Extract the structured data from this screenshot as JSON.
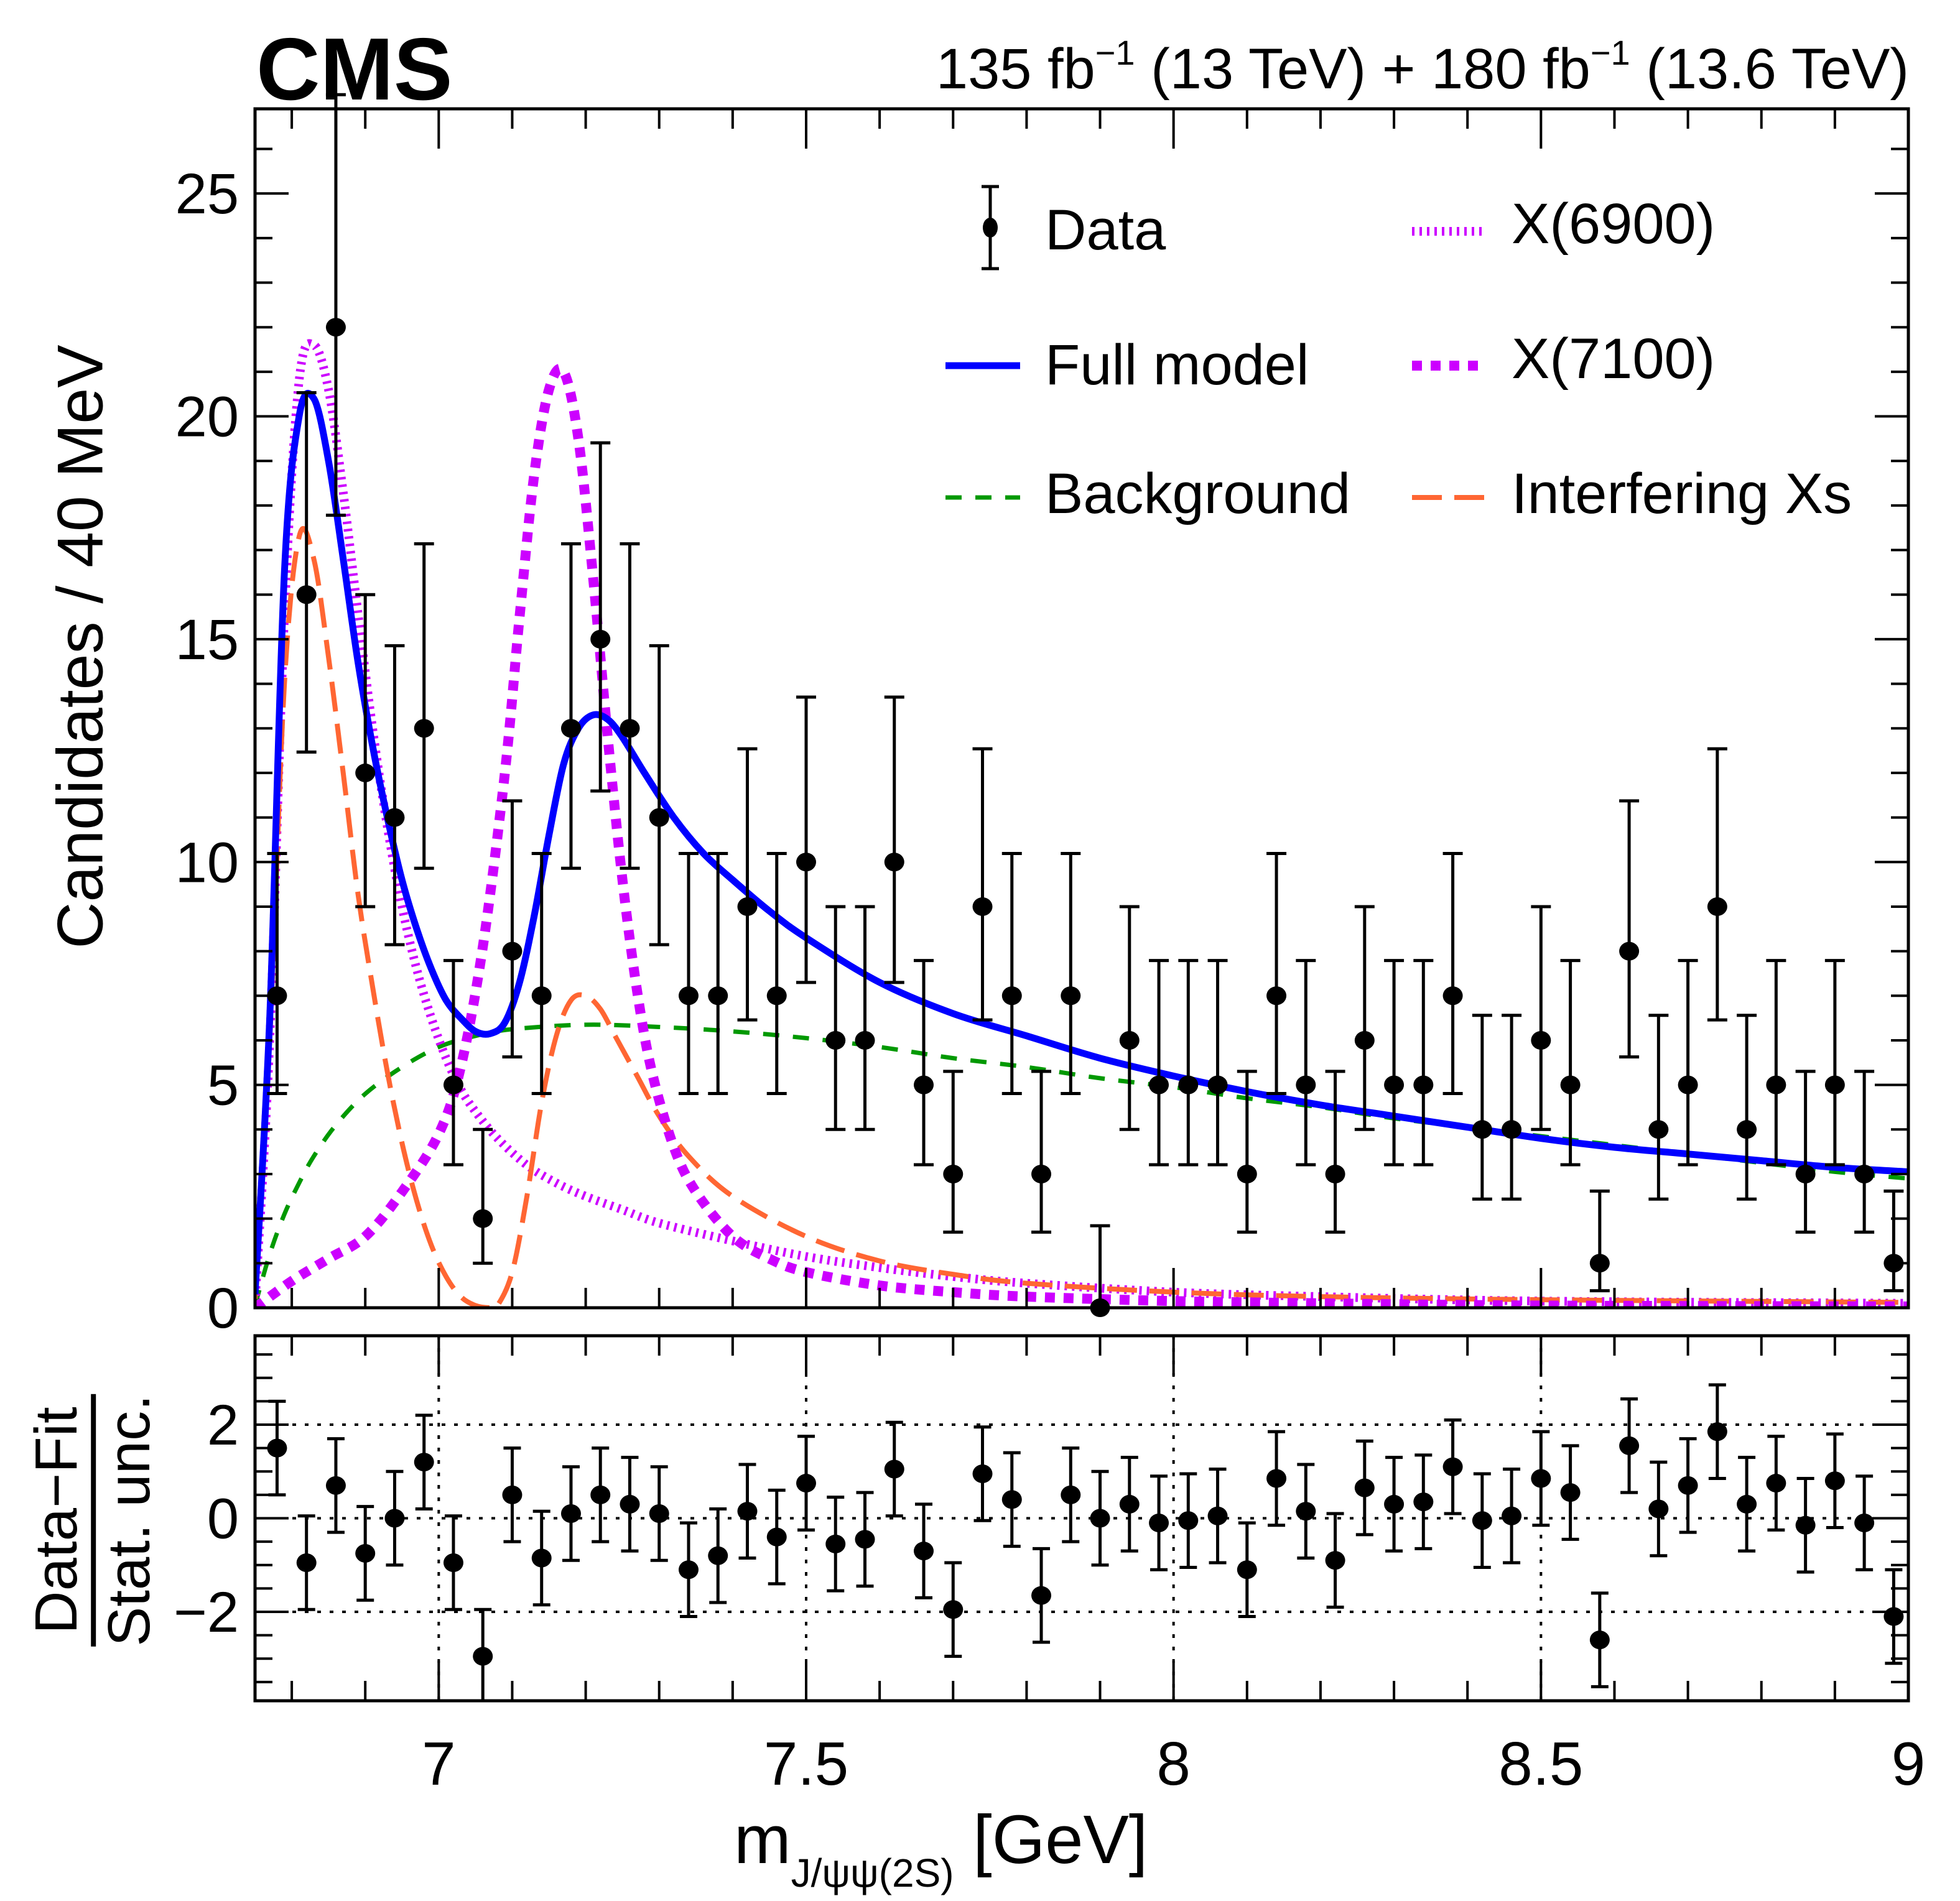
{
  "header": {
    "experiment": "CMS",
    "luminosity_label": {
      "part1": "135 fb",
      "sup1": "−1",
      "part2": " (13 TeV) + 180 fb",
      "sup2": "−1",
      "part3": " (13.6 TeV)"
    }
  },
  "legend": {
    "items": [
      {
        "key": "data",
        "label": "Data",
        "style": "marker-errorbar",
        "color": "#000000"
      },
      {
        "key": "x6900",
        "label": "X(6900)",
        "style": "fine-dotted",
        "color": "#cc00ff"
      },
      {
        "key": "full",
        "label": "Full model",
        "style": "solid",
        "color": "#0000ff"
      },
      {
        "key": "x7100",
        "label": "X(7100)",
        "style": "thick-dotted",
        "color": "#cc00ff"
      },
      {
        "key": "bkg",
        "label": "Background",
        "style": "dashed",
        "color": "#009900"
      },
      {
        "key": "interf",
        "label": "Interfering Xs",
        "style": "long-dashed",
        "color": "#ff6633"
      }
    ]
  },
  "axes": {
    "x_label_main": "m",
    "x_label_sub": "J/ψψ(2S)",
    "x_label_unit": " [GeV]",
    "y_label_main": "Candidates / 40 MeV",
    "y_label_ratio_num": "Data−Fit",
    "y_label_ratio_den": "Stat. unc."
  },
  "chart_data": [
    {
      "type": "scatter",
      "panel": "main",
      "title": "",
      "xlabel": "m_J/ψψ(2S) [GeV]",
      "ylabel": "Candidates / 40 MeV",
      "xlim": [
        6.75,
        9.0
      ],
      "ylim": [
        0,
        26.9
      ],
      "x_ticks": [
        7,
        7.5,
        8,
        8.5,
        9
      ],
      "x_tick_labels": [
        "7",
        "7.5",
        "8",
        "8.5",
        "9"
      ],
      "y_ticks": [
        0,
        5,
        10,
        15,
        20,
        25
      ],
      "y_tick_labels": [
        "0",
        "5",
        "10",
        "15",
        "20",
        "25"
      ],
      "grid": false,
      "legend_position": "top-right",
      "data": {
        "name": "Data",
        "x": [
          6.78,
          6.82,
          6.86,
          6.9,
          6.94,
          6.98,
          7.02,
          7.06,
          7.1,
          7.14,
          7.18,
          7.22,
          7.26,
          7.3,
          7.34,
          7.38,
          7.42,
          7.46,
          7.5,
          7.54,
          7.58,
          7.62,
          7.66,
          7.7,
          7.74,
          7.78,
          7.82,
          7.86,
          7.9,
          7.94,
          7.98,
          8.02,
          8.06,
          8.1,
          8.14,
          8.18,
          8.22,
          8.26,
          8.3,
          8.34,
          8.38,
          8.42,
          8.46,
          8.5,
          8.54,
          8.58,
          8.62,
          8.66,
          8.7,
          8.74,
          8.78,
          8.82,
          8.86,
          8.9,
          8.94,
          8.98
        ],
        "y": [
          7,
          16,
          22,
          12,
          11,
          13,
          5,
          2,
          8,
          7,
          13,
          15,
          13,
          11,
          7,
          7,
          9,
          7,
          10,
          6,
          6,
          10,
          5,
          3,
          9,
          7,
          3,
          7,
          0,
          6,
          5,
          5,
          5,
          3,
          7,
          5,
          3,
          6,
          5,
          5,
          7,
          4,
          4,
          6,
          5,
          1,
          8,
          4,
          5,
          9,
          4,
          5,
          3,
          5,
          3,
          1
        ],
        "errors": "Poisson (approx. ±√N, asymmetric)"
      },
      "series": [
        {
          "name": "Full model",
          "x": [
            6.75,
            6.77,
            6.79,
            6.81,
            6.83,
            6.85,
            6.87,
            6.89,
            6.91,
            6.93,
            6.95,
            6.97,
            6.99,
            7.01,
            7.03,
            7.05,
            7.07,
            7.09,
            7.11,
            7.13,
            7.15,
            7.17,
            7.19,
            7.21,
            7.23,
            7.25,
            7.28,
            7.32,
            7.36,
            7.4,
            7.45,
            7.5,
            7.6,
            7.7,
            7.8,
            7.9,
            8.0,
            8.1,
            8.2,
            8.3,
            8.4,
            8.5,
            8.6,
            8.7,
            8.8,
            8.9,
            9.0
          ],
          "y": [
            0.3,
            6.5,
            16.5,
            20.0,
            20.4,
            19.0,
            16.8,
            14.5,
            12.6,
            11.0,
            9.6,
            8.5,
            7.6,
            6.9,
            6.5,
            6.2,
            6.15,
            6.4,
            7.3,
            8.8,
            10.6,
            12.2,
            13.0,
            13.3,
            13.2,
            12.8,
            12.0,
            11.0,
            10.2,
            9.6,
            8.9,
            8.3,
            7.3,
            6.6,
            6.1,
            5.6,
            5.2,
            4.85,
            4.55,
            4.3,
            4.05,
            3.8,
            3.6,
            3.45,
            3.3,
            3.15,
            3.05
          ]
        },
        {
          "name": "Background",
          "x": [
            6.75,
            6.77,
            6.79,
            6.81,
            6.83,
            6.86,
            6.9,
            6.95,
            7.0,
            7.05,
            7.1,
            7.2,
            7.3,
            7.4,
            7.5,
            7.6,
            7.7,
            7.8,
            7.9,
            8.0,
            8.1,
            8.2,
            8.3,
            8.4,
            8.5,
            8.6,
            8.7,
            8.8,
            8.9,
            9.0
          ],
          "y": [
            0.05,
            1.2,
            2.1,
            2.8,
            3.4,
            4.1,
            4.8,
            5.4,
            5.85,
            6.1,
            6.25,
            6.35,
            6.3,
            6.2,
            6.05,
            5.85,
            5.6,
            5.4,
            5.15,
            4.95,
            4.7,
            4.5,
            4.25,
            4.05,
            3.85,
            3.65,
            3.45,
            3.25,
            3.05,
            2.9
          ]
        },
        {
          "name": "X(6900)",
          "x": [
            6.75,
            6.77,
            6.79,
            6.81,
            6.83,
            6.85,
            6.87,
            6.89,
            6.91,
            6.93,
            6.95,
            6.97,
            6.99,
            7.01,
            7.03,
            7.05,
            7.08,
            7.12,
            7.16,
            7.2,
            7.25,
            7.3,
            7.4,
            7.5,
            7.6,
            7.7,
            7.8,
            8.0,
            8.2,
            8.5,
            9.0
          ],
          "y": [
            0.1,
            6.0,
            15.5,
            20.8,
            21.6,
            20.6,
            18.3,
            15.6,
            13.0,
            10.8,
            9.0,
            7.6,
            6.5,
            5.6,
            4.9,
            4.4,
            3.8,
            3.2,
            2.8,
            2.5,
            2.2,
            1.9,
            1.5,
            1.15,
            0.9,
            0.7,
            0.55,
            0.35,
            0.25,
            0.15,
            0.1
          ]
        },
        {
          "name": "X(7100)",
          "x": [
            6.75,
            6.8,
            6.85,
            6.9,
            6.95,
            7.0,
            7.03,
            7.06,
            7.09,
            7.11,
            7.13,
            7.15,
            7.17,
            7.19,
            7.21,
            7.23,
            7.25,
            7.27,
            7.29,
            7.32,
            7.35,
            7.4,
            7.45,
            7.5,
            7.6,
            7.7,
            7.8,
            8.0,
            8.2,
            8.5,
            9.0
          ],
          "y": [
            0.0,
            0.6,
            1.1,
            1.6,
            2.6,
            3.9,
            5.4,
            8.1,
            12.0,
            15.5,
            18.7,
            20.6,
            21.0,
            19.5,
            16.4,
            12.8,
            9.6,
            7.1,
            5.3,
            3.6,
            2.6,
            1.6,
            1.1,
            0.8,
            0.5,
            0.35,
            0.25,
            0.15,
            0.1,
            0.05,
            0.03
          ]
        },
        {
          "name": "Interfering Xs",
          "x": [
            6.75,
            6.77,
            6.79,
            6.81,
            6.83,
            6.85,
            6.87,
            6.89,
            6.91,
            6.93,
            6.95,
            6.97,
            6.99,
            7.01,
            7.03,
            7.05,
            7.07,
            7.08,
            7.1,
            7.12,
            7.14,
            7.16,
            7.18,
            7.2,
            7.22,
            7.24,
            7.27,
            7.3,
            7.34,
            7.4,
            7.5,
            7.6,
            7.7,
            7.8,
            8.0,
            8.2,
            8.5,
            9.0
          ],
          "y": [
            0.2,
            6.0,
            14.0,
            17.3,
            16.8,
            14.6,
            12.0,
            9.3,
            7.2,
            5.3,
            3.7,
            2.4,
            1.4,
            0.7,
            0.25,
            0.05,
            0.0,
            0.05,
            0.8,
            2.5,
            4.6,
            6.1,
            6.9,
            7.0,
            6.7,
            6.1,
            5.2,
            4.3,
            3.4,
            2.5,
            1.6,
            1.05,
            0.75,
            0.55,
            0.35,
            0.25,
            0.18,
            0.12
          ]
        }
      ]
    },
    {
      "type": "scatter",
      "panel": "ratio",
      "title": "",
      "xlabel": "m_J/ψψ(2S) [GeV]",
      "ylabel": "(Data−Fit)/Stat. unc.",
      "xlim": [
        6.75,
        9.0
      ],
      "ylim": [
        -3.9,
        3.9
      ],
      "y_ticks": [
        -2,
        0,
        2
      ],
      "y_tick_labels": [
        "−2",
        "0",
        "2"
      ],
      "grid": true,
      "grid_lines_y": [
        -2,
        0,
        2
      ],
      "grid_lines_x": [
        7,
        7.5,
        8,
        8.5
      ],
      "x": [
        6.78,
        6.82,
        6.86,
        6.9,
        6.94,
        6.98,
        7.02,
        7.06,
        7.1,
        7.14,
        7.18,
        7.22,
        7.26,
        7.3,
        7.34,
        7.38,
        7.42,
        7.46,
        7.5,
        7.54,
        7.58,
        7.62,
        7.66,
        7.7,
        7.74,
        7.78,
        7.82,
        7.86,
        7.9,
        7.94,
        7.98,
        8.02,
        8.06,
        8.1,
        8.14,
        8.18,
        8.22,
        8.26,
        8.3,
        8.34,
        8.38,
        8.42,
        8.46,
        8.5,
        8.54,
        8.58,
        8.62,
        8.66,
        8.7,
        8.74,
        8.78,
        8.82,
        8.86,
        8.9,
        8.94,
        8.98
      ],
      "y": [
        1.5,
        -0.95,
        0.7,
        -0.75,
        0.0,
        1.2,
        -0.95,
        -2.95,
        0.5,
        -0.85,
        0.1,
        0.5,
        0.3,
        0.1,
        -1.1,
        -0.8,
        0.15,
        -0.4,
        0.75,
        -0.55,
        -0.45,
        1.05,
        -0.7,
        -1.95,
        0.95,
        0.4,
        -1.65,
        0.5,
        0.0,
        0.3,
        -0.1,
        -0.05,
        0.05,
        -1.1,
        0.85,
        0.15,
        -0.9,
        0.65,
        0.3,
        0.35,
        1.1,
        -0.05,
        0.05,
        0.85,
        0.55,
        -2.6,
        1.55,
        0.2,
        0.7,
        1.85,
        0.3,
        0.75,
        -0.15,
        0.8,
        -0.1,
        -2.1
      ],
      "error": 1.0
    }
  ]
}
